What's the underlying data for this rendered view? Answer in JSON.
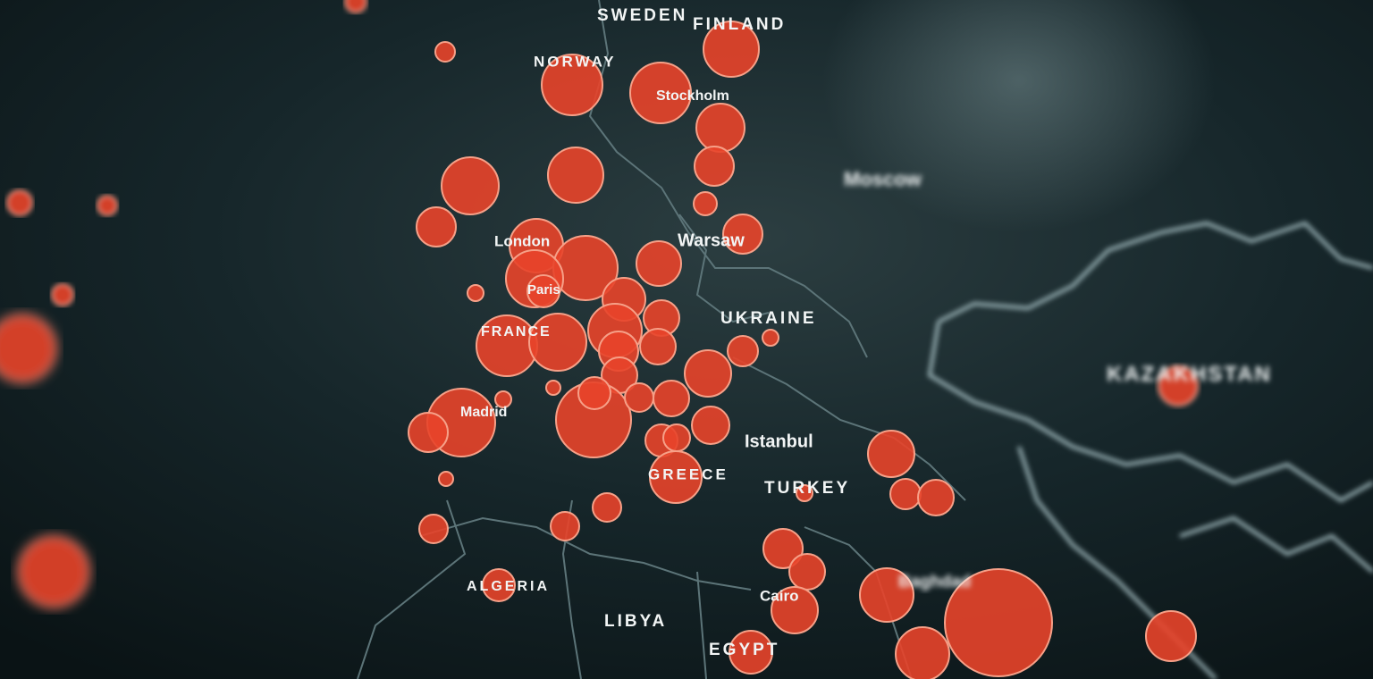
{
  "map": {
    "labels": [
      "SWEDEN",
      "FINLAND",
      "NORWAY",
      "Stockholm",
      "Moscow",
      "Warsaw",
      "London",
      "Paris",
      "FRANCE",
      "UKRAINE",
      "KAZAKHSTAN",
      "Madrid",
      "Istanbul",
      "TURKEY",
      "GREECE",
      "ALGERIA",
      "LIBYA",
      "EGYPT",
      "Cairo",
      "Baghdad"
    ]
  }
}
